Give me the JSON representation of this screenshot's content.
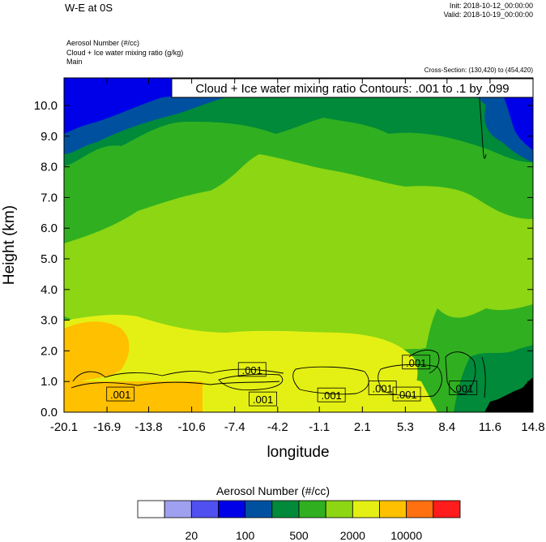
{
  "header": {
    "title": "W-E at 0S",
    "init": "Init: 2018-10-12_00:00:00",
    "valid": "Valid: 2018-10-19_00:00:00",
    "field_lines": [
      "Aerosol Number   (#/cc)",
      "Cloud + Ice water mixing ratio   (g/kg)",
      "Main"
    ],
    "cross_section": "Cross-Section: (130,420) to (454,420)"
  },
  "chart_data": {
    "type": "heatmap",
    "title": "Cloud + Ice water mixing ratio Contours: .001 to .1 by .099",
    "xlabel": "longitude",
    "ylabel": "Height (km)",
    "xlim": [
      -20.1,
      14.8
    ],
    "ylim": [
      0.0,
      10.9
    ],
    "x_ticks": [
      "-20.1",
      "-16.9",
      "-13.8",
      "-10.6",
      "-7.4",
      "-4.2",
      "-1.1",
      "2.1",
      "5.3",
      "8.4",
      "11.6",
      "14.8"
    ],
    "x_tick_values": [
      -20.1,
      -16.9,
      -13.8,
      -10.6,
      -7.4,
      -4.2,
      -1.1,
      2.1,
      5.3,
      8.4,
      11.6,
      14.8
    ],
    "y_ticks": [
      "0.0",
      "1.0",
      "2.0",
      "3.0",
      "4.0",
      "5.0",
      "6.0",
      "7.0",
      "8.0",
      "9.0",
      "10.0"
    ],
    "y_tick_values": [
      0,
      1,
      2,
      3,
      4,
      5,
      6,
      7,
      8,
      9,
      10
    ],
    "contour_labels": [
      {
        "text": ".001",
        "x": -15.9,
        "y": 0.58
      },
      {
        "text": ".001",
        "x": -6.1,
        "y": 1.38
      },
      {
        "text": ".001",
        "x": -5.3,
        "y": 0.42
      },
      {
        "text": ".001",
        "x": -0.2,
        "y": 0.55
      },
      {
        "text": ".001",
        "x": 3.6,
        "y": 0.78
      },
      {
        "text": ".001",
        "x": 5.4,
        "y": 0.58
      },
      {
        "text": ".001",
        "x": 6.1,
        "y": 1.62
      },
      {
        "text": ".001",
        "x": 9.6,
        "y": 0.78
      }
    ],
    "colorbar": {
      "title": "Aerosol Number  (#/cc)",
      "colors": [
        "#ffffff",
        "#a0a0f0",
        "#5050f0",
        "#0000e8",
        "#0050a0",
        "#008a3a",
        "#30b020",
        "#8cd614",
        "#e4f014",
        "#ffc000",
        "#ff7010",
        "#ff1c1c"
      ],
      "labels": [
        "20",
        "100",
        "500",
        "2000",
        "10000"
      ]
    },
    "grid": false
  }
}
